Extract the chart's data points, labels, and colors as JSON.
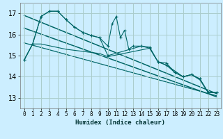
{
  "xlabel": "Humidex (Indice chaleur)",
  "background_color": "#cceeff",
  "grid_color": "#aacccc",
  "line_color": "#006666",
  "xlim": [
    -0.5,
    23.5
  ],
  "ylim": [
    12.5,
    17.5
  ],
  "yticks": [
    13,
    14,
    15,
    16,
    17
  ],
  "xticks": [
    0,
    1,
    2,
    3,
    4,
    5,
    6,
    7,
    8,
    9,
    10,
    11,
    12,
    13,
    14,
    15,
    16,
    17,
    18,
    19,
    20,
    21,
    22,
    23
  ],
  "series_main_x": [
    0,
    1,
    2,
    3,
    4,
    5,
    6,
    7,
    8,
    9,
    10,
    10.5,
    11,
    11.5,
    12,
    12.5,
    13,
    14,
    15,
    16,
    17,
    18,
    19,
    20,
    21,
    22,
    23
  ],
  "series_main_y": [
    14.8,
    15.55,
    16.85,
    17.1,
    17.1,
    16.7,
    16.35,
    16.1,
    15.95,
    15.85,
    15.45,
    16.5,
    16.85,
    15.85,
    16.2,
    15.3,
    15.45,
    15.45,
    15.35,
    14.7,
    14.65,
    14.2,
    14.0,
    14.1,
    13.9,
    13.25,
    13.25
  ],
  "series_smooth_x": [
    0,
    1,
    2,
    3,
    4,
    5,
    6,
    7,
    8,
    9,
    10,
    14,
    15,
    16,
    17,
    18,
    19,
    20,
    21,
    22,
    23
  ],
  "series_smooth_y": [
    14.8,
    15.55,
    16.85,
    17.1,
    17.1,
    16.7,
    16.35,
    16.1,
    15.95,
    15.85,
    15.0,
    15.45,
    15.4,
    14.7,
    14.55,
    14.2,
    14.0,
    14.1,
    13.9,
    13.25,
    13.25
  ],
  "series_lower_x": [
    0,
    1,
    2,
    5,
    9,
    10,
    15,
    16,
    17,
    19,
    20,
    21,
    22,
    23
  ],
  "series_lower_y": [
    14.8,
    15.55,
    15.55,
    15.3,
    15.1,
    14.95,
    15.35,
    14.7,
    14.55,
    14.0,
    14.1,
    13.85,
    13.25,
    13.25
  ],
  "trend1_x": [
    0,
    23
  ],
  "trend1_y": [
    16.9,
    13.2
  ],
  "trend2_x": [
    0,
    23
  ],
  "trend2_y": [
    16.3,
    13.05
  ],
  "trend3_x": [
    0,
    23
  ],
  "trend3_y": [
    15.6,
    13.1
  ]
}
